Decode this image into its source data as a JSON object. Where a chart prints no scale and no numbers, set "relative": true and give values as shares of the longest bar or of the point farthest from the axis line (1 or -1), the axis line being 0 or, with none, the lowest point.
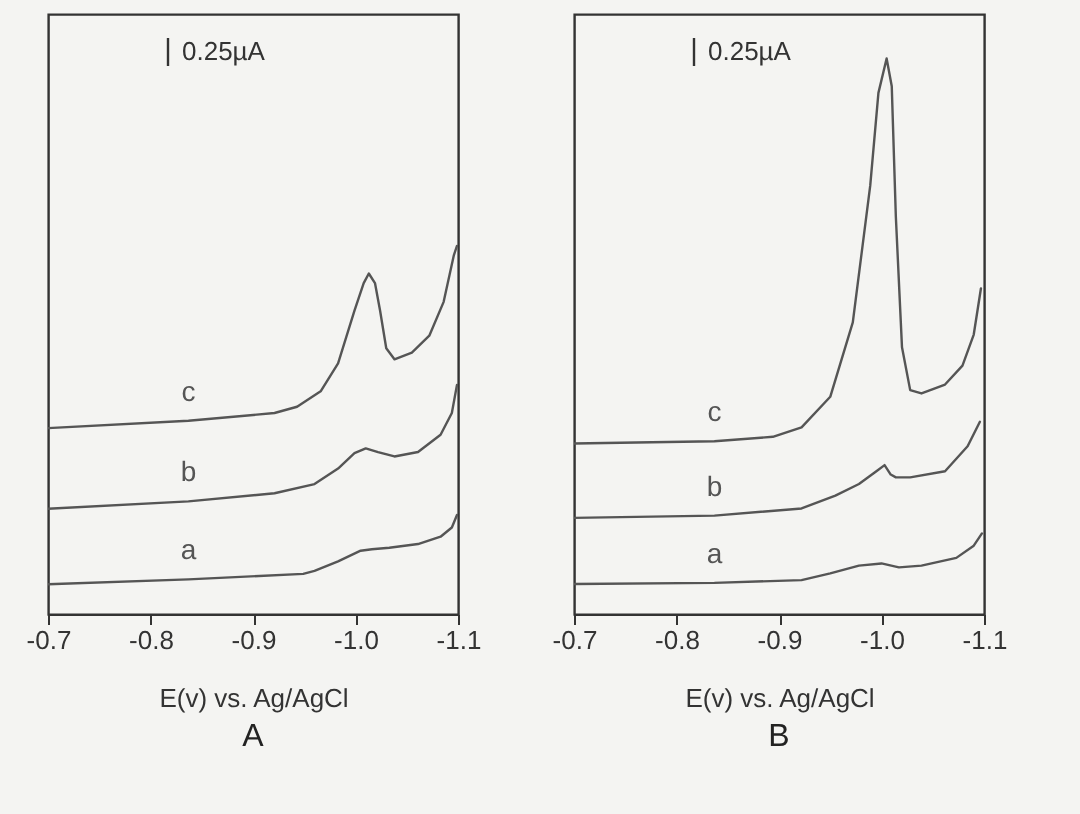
{
  "chart_data": [
    {
      "type": "line",
      "title": "A",
      "xlabel": "E(v) vs. Ag/AgCl",
      "annotations": [
        "0.25µA"
      ],
      "relative": true,
      "xlim": [
        -0.7,
        -1.1
      ],
      "xticks": [
        -0.7,
        -0.8,
        -0.9,
        {
          "value": -1,
          "label": "-1.0"
        },
        -1.1
      ],
      "grid": false,
      "legend": false,
      "marker": "none",
      "line_style": "solid",
      "series": [
        {
          "name": "a",
          "color": "#555555",
          "x": [
            -0.7,
            -0.837,
            -0.949,
            -0.96,
            -0.983,
            -1.005,
            -1.016,
            -1.033,
            -1.061,
            -1.083,
            -1.094,
            -1.099
          ],
          "values": [
            0.081,
            0.094,
            0.109,
            0.117,
            0.143,
            0.172,
            0.176,
            0.18,
            0.19,
            0.21,
            0.235,
            0.269
          ]
        },
        {
          "name": "b",
          "color": "#555555",
          "x": [
            -0.7,
            -0.837,
            -0.921,
            -0.96,
            -0.983,
            -0.999,
            -1.01,
            -1.022,
            -1.038,
            -1.061,
            -1.083,
            -1.094,
            -1.099
          ],
          "values": [
            0.286,
            0.306,
            0.328,
            0.353,
            0.395,
            0.437,
            0.45,
            0.44,
            0.428,
            0.44,
            0.487,
            0.546,
            0.622
          ]
        },
        {
          "name": "c",
          "color": "#555555",
          "x": [
            -0.7,
            -0.837,
            -0.921,
            -0.943,
            -0.966,
            -0.983,
            -0.999,
            -1.008,
            -1.013,
            -1.019,
            -1.024,
            -1.03,
            -1.038,
            -1.055,
            -1.072,
            -1.086,
            -1.096,
            -1.099
          ],
          "values": [
            0.505,
            0.525,
            0.546,
            0.563,
            0.605,
            0.681,
            0.824,
            0.899,
            0.925,
            0.899,
            0.824,
            0.722,
            0.692,
            0.71,
            0.756,
            0.848,
            0.975,
            1
          ]
        }
      ]
    },
    {
      "type": "line",
      "title": "B",
      "xlabel": "E(v) vs. Ag/AgCl",
      "annotations": [
        "0.25µA"
      ],
      "relative": true,
      "xlim": [
        -0.7,
        -1.1
      ],
      "xticks": [
        -0.7,
        -0.8,
        -0.9,
        {
          "value": -1,
          "label": "-1.0"
        },
        -1.1
      ],
      "grid": false,
      "legend": false,
      "marker": "none",
      "line_style": "solid",
      "series": [
        {
          "name": "a",
          "color": "#555555",
          "x": [
            -0.7,
            -0.837,
            -0.922,
            -0.95,
            -0.978,
            -1.0,
            -1.017,
            -1.039,
            -1.073,
            -1.09,
            -1.098
          ],
          "values": [
            0.054,
            0.056,
            0.061,
            0.073,
            0.087,
            0.091,
            0.084,
            0.087,
            0.101,
            0.123,
            0.145
          ]
        },
        {
          "name": "b",
          "color": "#555555",
          "x": [
            -0.7,
            -0.837,
            -0.922,
            -0.955,
            -0.978,
            -0.995,
            -1.003,
            -1.009,
            -1.014,
            -1.028,
            -1.062,
            -1.084,
            -1.096
          ],
          "values": [
            0.173,
            0.177,
            0.19,
            0.213,
            0.234,
            0.257,
            0.268,
            0.251,
            0.246,
            0.246,
            0.257,
            0.302,
            0.346
          ]
        },
        {
          "name": "c",
          "color": "#555555",
          "x": [
            -0.7,
            -0.837,
            -0.894,
            -0.922,
            -0.95,
            -0.972,
            -0.989,
            -0.997,
            -1.005,
            -1.01,
            -1.014,
            -1.02,
            -1.028,
            -1.039,
            -1.062,
            -1.079,
            -1.09,
            -1.097
          ],
          "values": [
            0.307,
            0.311,
            0.319,
            0.336,
            0.391,
            0.525,
            0.771,
            0.938,
            1,
            0.95,
            0.715,
            0.48,
            0.403,
            0.397,
            0.413,
            0.447,
            0.503,
            0.586
          ]
        }
      ]
    }
  ]
}
